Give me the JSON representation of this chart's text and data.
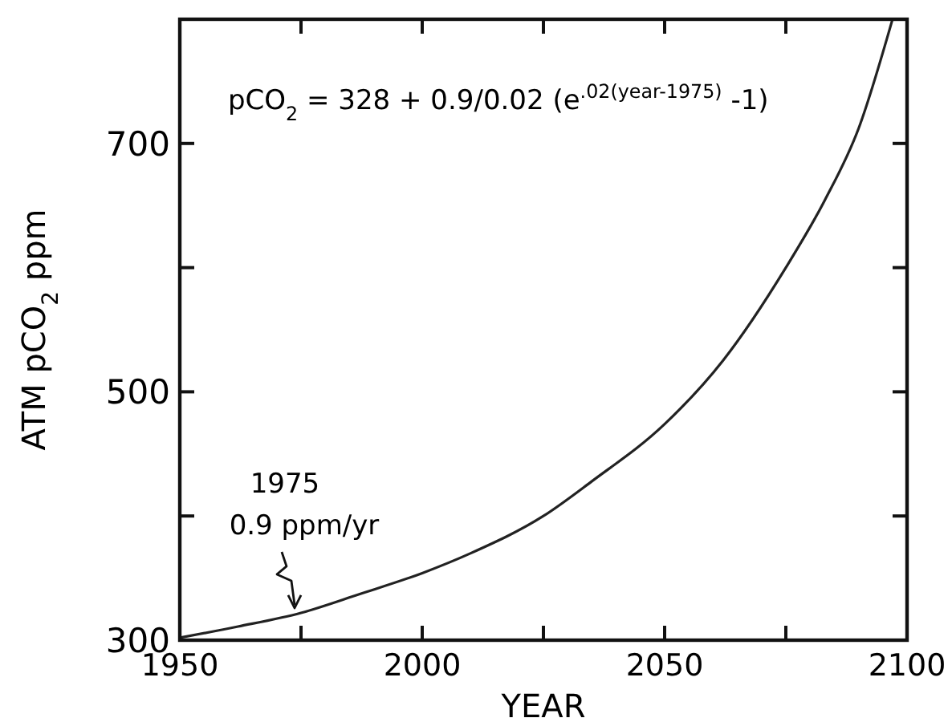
{
  "chart_data": {
    "type": "line",
    "xlabel": "YEAR",
    "ylabel": "ATM pCO$_{2}$ ppm",
    "x": [
      1950,
      1962,
      1975,
      1987,
      2000,
      2010,
      2025,
      2035,
      2050,
      2062,
      2075,
      2083,
      2090,
      2097
    ],
    "series": [
      {
        "color": "#222222",
        "values": [
          302,
          311,
          322,
          337,
          354,
          370,
          400,
          428,
          474,
          525,
          600,
          654,
          712,
          800
        ]
      }
    ],
    "xlim": [
      1950,
      2100
    ],
    "ylim": [
      300,
      800
    ],
    "xticks": [
      1950,
      {
        "value": 1975,
        "label": null
      },
      2000,
      {
        "value": 2025,
        "label": null
      },
      2050,
      {
        "value": 2075,
        "label": null
      },
      2100
    ],
    "yticks": [
      300,
      {
        "value": 400,
        "label": null
      },
      500,
      {
        "value": 600,
        "label": null
      },
      700
    ],
    "grid": false,
    "marker": "none",
    "line_style": "solid",
    "annotations": [
      "pCO$_{2}$ = 328 + 0.9/0.02 (e$^{.02(year-1975)}$ -1)",
      {
        "text": "1975\n0.9 ppm/yr",
        "x": 1975,
        "y": 322
      }
    ]
  }
}
